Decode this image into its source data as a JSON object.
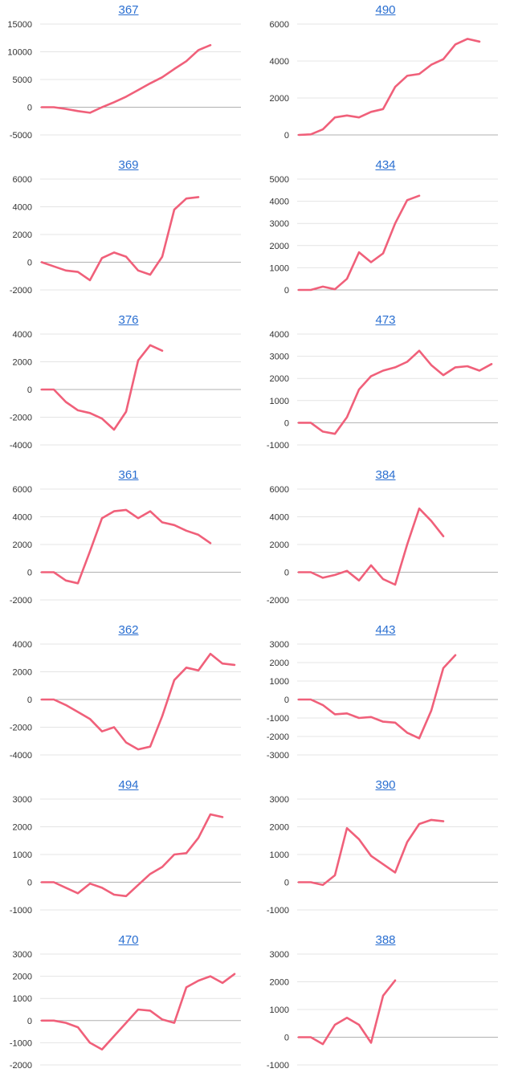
{
  "chart_data": [
    {
      "type": "line",
      "title": "367",
      "ylim": [
        -5000,
        15000
      ],
      "yticks": [
        15000,
        10000,
        5000,
        0,
        -5000
      ],
      "values": [
        0,
        0,
        -300,
        -700,
        -1000,
        0,
        900,
        1900,
        3100,
        4300,
        5400,
        6900,
        8300,
        10300,
        11200
      ],
      "color": "#f0607a"
    },
    {
      "type": "line",
      "title": "490",
      "ylim": [
        0,
        6000
      ],
      "yticks": [
        6000,
        4000,
        2000,
        0
      ],
      "values": [
        0,
        30,
        300,
        950,
        1050,
        950,
        1250,
        1400,
        2600,
        3200,
        3300,
        3800,
        4100,
        4900,
        5200,
        5050
      ],
      "color": "#f0607a"
    },
    {
      "type": "line",
      "title": "369",
      "ylim": [
        -2000,
        6000
      ],
      "yticks": [
        6000,
        4000,
        2000,
        0,
        -2000
      ],
      "values": [
        0,
        -300,
        -600,
        -700,
        -1300,
        300,
        700,
        400,
        -600,
        -900,
        400,
        3800,
        4600,
        4700
      ],
      "color": "#f0607a"
    },
    {
      "type": "line",
      "title": "434",
      "ylim": [
        0,
        5000
      ],
      "yticks": [
        5000,
        4000,
        3000,
        2000,
        1000,
        0
      ],
      "values": [
        0,
        0,
        150,
        30,
        500,
        1700,
        1250,
        1650,
        3000,
        4050,
        4250
      ],
      "color": "#f0607a"
    },
    {
      "type": "line",
      "title": "376",
      "ylim": [
        -4000,
        4000
      ],
      "yticks": [
        4000,
        2000,
        0,
        -2000,
        -4000
      ],
      "values": [
        0,
        0,
        -900,
        -1500,
        -1700,
        -2100,
        -2900,
        -1600,
        2100,
        3200,
        2800
      ],
      "color": "#f0607a"
    },
    {
      "type": "line",
      "title": "473",
      "ylim": [
        -1000,
        4000
      ],
      "yticks": [
        4000,
        3000,
        2000,
        1000,
        0,
        -1000
      ],
      "values": [
        0,
        0,
        -400,
        -500,
        250,
        1500,
        2100,
        2350,
        2500,
        2750,
        3250,
        2600,
        2150,
        2500,
        2550,
        2350,
        2650
      ],
      "color": "#f0607a"
    },
    {
      "type": "line",
      "title": "361",
      "ylim": [
        -2000,
        6000
      ],
      "yticks": [
        6000,
        4000,
        2000,
        0,
        -2000
      ],
      "values": [
        0,
        0,
        -600,
        -800,
        1500,
        3900,
        4400,
        4500,
        3900,
        4400,
        3600,
        3400,
        3000,
        2700,
        2100
      ],
      "color": "#f0607a"
    },
    {
      "type": "line",
      "title": "384",
      "ylim": [
        -2000,
        6000
      ],
      "yticks": [
        6000,
        4000,
        2000,
        0,
        -2000
      ],
      "values": [
        0,
        0,
        -400,
        -200,
        100,
        -600,
        500,
        -500,
        -900,
        2000,
        4600,
        3700,
        2600
      ],
      "color": "#f0607a"
    },
    {
      "type": "line",
      "title": "362",
      "ylim": [
        -4000,
        4000
      ],
      "yticks": [
        4000,
        2000,
        0,
        -2000,
        -4000
      ],
      "values": [
        0,
        0,
        -400,
        -900,
        -1400,
        -2300,
        -2000,
        -3100,
        -3600,
        -3400,
        -1200,
        1400,
        2300,
        2100,
        3300,
        2600,
        2500
      ],
      "color": "#f0607a"
    },
    {
      "type": "line",
      "title": "443",
      "ylim": [
        -3000,
        3000
      ],
      "yticks": [
        3000,
        2000,
        1000,
        0,
        -1000,
        -2000,
        -3000
      ],
      "values": [
        0,
        0,
        -300,
        -800,
        -750,
        -1000,
        -950,
        -1200,
        -1250,
        -1800,
        -2100,
        -600,
        1700,
        2400
      ],
      "color": "#f0607a"
    },
    {
      "type": "line",
      "title": "494",
      "ylim": [
        -1000,
        3000
      ],
      "yticks": [
        3000,
        2000,
        1000,
        0,
        -1000
      ],
      "values": [
        0,
        0,
        -200,
        -400,
        -50,
        -200,
        -450,
        -500,
        -100,
        300,
        550,
        1000,
        1050,
        1600,
        2450,
        2350
      ],
      "color": "#f0607a"
    },
    {
      "type": "line",
      "title": "390",
      "ylim": [
        -1000,
        3000
      ],
      "yticks": [
        3000,
        2000,
        1000,
        0,
        -1000
      ],
      "values": [
        0,
        0,
        -100,
        250,
        1950,
        1550,
        950,
        650,
        350,
        1450,
        2100,
        2250,
        2200
      ],
      "color": "#f0607a"
    },
    {
      "type": "line",
      "title": "470",
      "ylim": [
        -2000,
        3000
      ],
      "yticks": [
        3000,
        2000,
        1000,
        0,
        -1000,
        -2000
      ],
      "values": [
        0,
        0,
        -100,
        -300,
        -1000,
        -1300,
        -700,
        -100,
        500,
        450,
        50,
        -100,
        1500,
        1800,
        2000,
        1700,
        2100
      ],
      "color": "#f0607a"
    },
    {
      "type": "line",
      "title": "388",
      "ylim": [
        -1000,
        3000
      ],
      "yticks": [
        3000,
        2000,
        1000,
        0,
        -1000
      ],
      "values": [
        0,
        0,
        -250,
        450,
        700,
        450,
        -200,
        1500,
        2050
      ],
      "color": "#f0607a"
    }
  ]
}
